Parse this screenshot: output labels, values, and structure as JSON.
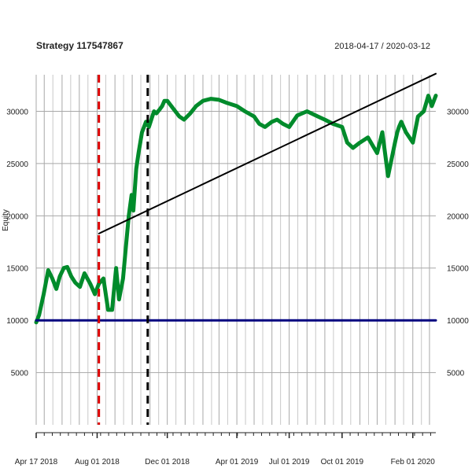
{
  "chart_data": {
    "type": "line",
    "title": "Strategy 117547867",
    "date_range": "2018-04-17 / 2020-03-12",
    "ylabel": "Equity",
    "xlabel": "",
    "x_range": [
      "2018-04-17",
      "2020-03-12"
    ],
    "ylim": [
      0,
      33500
    ],
    "y_ticks": [
      5000,
      10000,
      15000,
      20000,
      25000,
      30000
    ],
    "x_ticks": [
      {
        "date": "2018-04-17",
        "label": "Apr 17 2018"
      },
      {
        "date": "2018-08-01",
        "label": "Aug 01 2018"
      },
      {
        "date": "2018-12-01",
        "label": "Dec 01 2018"
      },
      {
        "date": "2019-04-01",
        "label": "Apr 01 2019"
      },
      {
        "date": "2019-07-01",
        "label": "Jul 01 2019"
      },
      {
        "date": "2019-10-01",
        "label": "Oct 01 2019"
      },
      {
        "date": "2020-02-01",
        "label": "Feb 01 2020"
      }
    ],
    "grid": true,
    "series": [
      {
        "color": "#008b2b",
        "x": [
          "2018-04-17",
          "2018-04-22",
          "2018-04-30",
          "2018-05-08",
          "2018-05-15",
          "2018-05-22",
          "2018-05-28",
          "2018-06-04",
          "2018-06-10",
          "2018-06-17",
          "2018-06-24",
          "2018-07-02",
          "2018-07-10",
          "2018-07-20",
          "2018-07-28",
          "2018-08-04",
          "2018-08-12",
          "2018-08-20",
          "2018-08-27",
          "2018-09-03",
          "2018-09-08",
          "2018-09-15",
          "2018-09-20",
          "2018-09-25",
          "2018-09-30",
          "2018-10-03",
          "2018-10-08",
          "2018-10-12",
          "2018-10-18",
          "2018-10-25",
          "2018-10-30",
          "2018-11-05",
          "2018-11-08",
          "2018-11-12",
          "2018-11-18",
          "2018-11-22",
          "2018-11-26",
          "2018-12-01",
          "2018-12-08",
          "2018-12-15",
          "2018-12-22",
          "2018-12-30",
          "2019-01-10",
          "2019-01-20",
          "2019-02-01",
          "2019-02-15",
          "2019-03-01",
          "2019-03-15",
          "2019-04-01",
          "2019-04-15",
          "2019-05-01",
          "2019-05-10",
          "2019-05-20",
          "2019-06-01",
          "2019-06-10",
          "2019-06-20",
          "2019-07-01",
          "2019-07-15",
          "2019-08-01",
          "2019-08-20",
          "2019-09-01",
          "2019-09-15",
          "2019-10-01",
          "2019-10-10",
          "2019-10-20",
          "2019-11-01",
          "2019-11-15",
          "2019-12-01",
          "2019-12-10",
          "2019-12-20",
          "2020-01-01",
          "2020-01-05",
          "2020-01-08",
          "2020-01-12",
          "2020-01-20",
          "2020-02-01",
          "2020-02-10",
          "2020-02-20",
          "2020-02-28",
          "2020-03-05",
          "2020-03-12"
        ],
        "y": [
          9800,
          10500,
          12500,
          14800,
          14000,
          13000,
          14200,
          15000,
          15100,
          14200,
          13600,
          13200,
          14500,
          13500,
          12500,
          13500,
          14000,
          11000,
          11000,
          15000,
          12000,
          14000,
          17000,
          20000,
          22000,
          20500,
          24500,
          26000,
          28000,
          29000,
          28500,
          29500,
          30000,
          29800,
          30200,
          30500,
          31000,
          31000,
          30500,
          30000,
          29500,
          29200,
          29800,
          30500,
          31000,
          31200,
          31100,
          30800,
          30500,
          30000,
          29500,
          28800,
          28500,
          29000,
          29200,
          28800,
          28500,
          29600,
          30000,
          29500,
          29200,
          28800,
          28500,
          27000,
          26500,
          27000,
          27500,
          26000,
          28000,
          23800,
          27000,
          28000,
          28500,
          29000,
          28000,
          27000,
          29500,
          30000,
          31500,
          30500,
          31500
        ]
      },
      {
        "color": "#000000",
        "x": [
          "2018-08-04",
          "2020-03-12"
        ],
        "y": [
          18300,
          33600
        ]
      },
      {
        "color": "#00007f",
        "x": [
          "2018-04-17",
          "2020-03-12"
        ],
        "y": [
          10000,
          10000
        ]
      }
    ],
    "markers": [
      {
        "date": "2018-08-04",
        "color": "#dd0000",
        "style": "dashed"
      },
      {
        "date": "2018-10-28",
        "color": "#000000",
        "style": "dashed"
      }
    ]
  }
}
